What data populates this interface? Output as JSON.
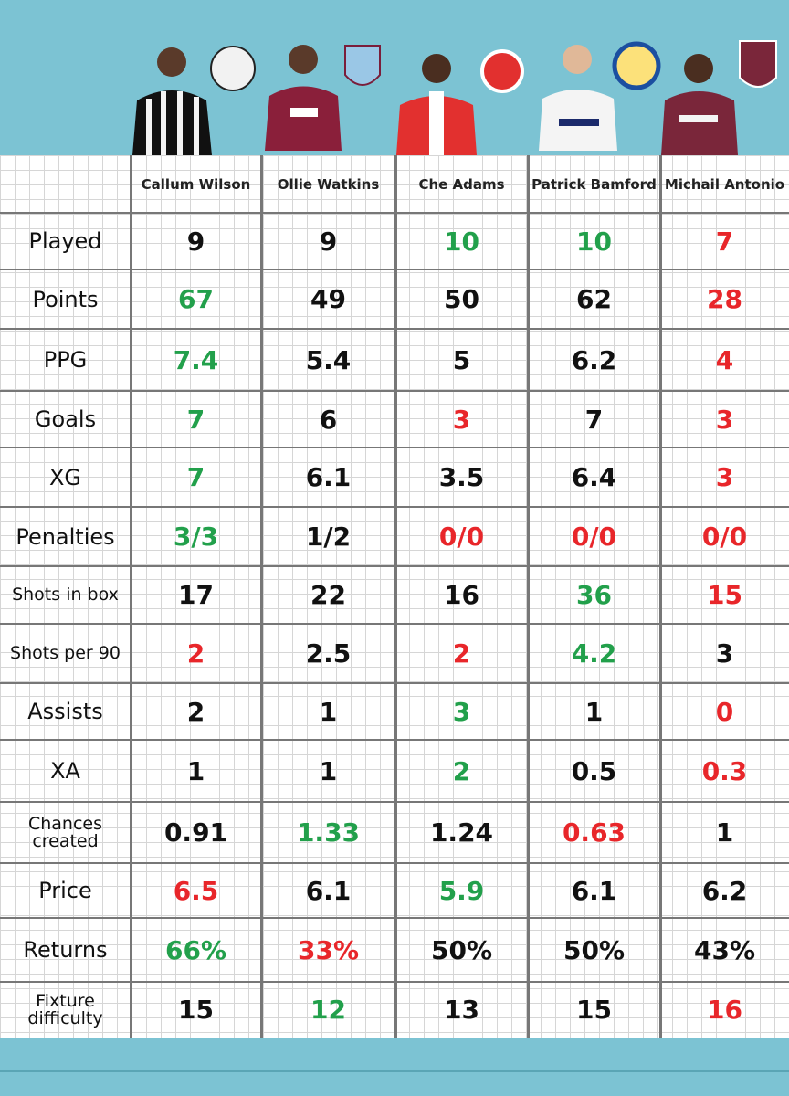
{
  "table": {
    "header": [
      "Callum Wilson",
      "Ollie Watkins",
      "Che Adams",
      "Patrick Bamford",
      "Michail Antonio"
    ],
    "rows": [
      {
        "label": "Played",
        "cells": [
          {
            "text": "9",
            "color": "#111111"
          },
          {
            "text": "9",
            "color": "#111111"
          },
          {
            "text": "10",
            "color": "#22a04b"
          },
          {
            "text": "10",
            "color": "#22a04b"
          },
          {
            "text": "7",
            "color": "#e8262a"
          }
        ]
      },
      {
        "label": "Points",
        "cells": [
          {
            "text": "67",
            "color": "#22a04b"
          },
          {
            "text": "49",
            "color": "#111111"
          },
          {
            "text": "50",
            "color": "#111111"
          },
          {
            "text": "62",
            "color": "#111111"
          },
          {
            "text": "28",
            "color": "#e8262a"
          }
        ]
      },
      {
        "label": "PPG",
        "cells": [
          {
            "text": "7.4",
            "color": "#22a04b"
          },
          {
            "text": "5.4",
            "color": "#111111"
          },
          {
            "text": "5",
            "color": "#111111"
          },
          {
            "text": "6.2",
            "color": "#111111"
          },
          {
            "text": "4",
            "color": "#e8262a"
          }
        ]
      },
      {
        "label": "Goals",
        "cells": [
          {
            "text": "7",
            "color": "#22a04b"
          },
          {
            "text": "6",
            "color": "#111111"
          },
          {
            "text": "3",
            "color": "#e8262a"
          },
          {
            "text": "7",
            "color": "#111111"
          },
          {
            "text": "3",
            "color": "#e8262a"
          }
        ]
      },
      {
        "label": "XG",
        "cells": [
          {
            "text": "7",
            "color": "#22a04b"
          },
          {
            "text": "6.1",
            "color": "#111111"
          },
          {
            "text": "3.5",
            "color": "#111111"
          },
          {
            "text": "6.4",
            "color": "#111111"
          },
          {
            "text": "3",
            "color": "#e8262a"
          }
        ]
      },
      {
        "label": "Penalties",
        "cells": [
          {
            "text": "3/3",
            "color": "#22a04b"
          },
          {
            "text": "1/2",
            "color": "#111111"
          },
          {
            "text": "0/0",
            "color": "#e8262a"
          },
          {
            "text": "0/0",
            "color": "#e8262a"
          },
          {
            "text": "0/0",
            "color": "#e8262a"
          }
        ]
      },
      {
        "label": "Shots in box",
        "cells": [
          {
            "text": "17",
            "color": "#111111"
          },
          {
            "text": "22",
            "color": "#111111"
          },
          {
            "text": "16",
            "color": "#111111"
          },
          {
            "text": "36",
            "color": "#22a04b"
          },
          {
            "text": "15",
            "color": "#e8262a"
          }
        ]
      },
      {
        "label": "Shots per 90",
        "cells": [
          {
            "text": "2",
            "color": "#e8262a"
          },
          {
            "text": "2.5",
            "color": "#111111"
          },
          {
            "text": "2",
            "color": "#e8262a"
          },
          {
            "text": "4.2",
            "color": "#22a04b"
          },
          {
            "text": "3",
            "color": "#111111"
          }
        ]
      },
      {
        "label": "Assists",
        "cells": [
          {
            "text": "2",
            "color": "#111111"
          },
          {
            "text": "1",
            "color": "#111111"
          },
          {
            "text": "3",
            "color": "#22a04b"
          },
          {
            "text": "1",
            "color": "#111111"
          },
          {
            "text": "0",
            "color": "#e8262a"
          }
        ]
      },
      {
        "label": "XA",
        "cells": [
          {
            "text": "1",
            "color": "#111111"
          },
          {
            "text": "1",
            "color": "#111111"
          },
          {
            "text": "2",
            "color": "#22a04b"
          },
          {
            "text": "0.5",
            "color": "#111111"
          },
          {
            "text": "0.3",
            "color": "#e8262a"
          }
        ]
      },
      {
        "label": "Chances created",
        "cells": [
          {
            "text": "0.91",
            "color": "#111111"
          },
          {
            "text": "1.33",
            "color": "#22a04b"
          },
          {
            "text": "1.24",
            "color": "#111111"
          },
          {
            "text": "0.63",
            "color": "#e8262a"
          },
          {
            "text": "1",
            "color": "#111111"
          }
        ]
      },
      {
        "label": "Price",
        "cells": [
          {
            "text": "6.5",
            "color": "#e8262a"
          },
          {
            "text": "6.1",
            "color": "#111111"
          },
          {
            "text": "5.9",
            "color": "#22a04b"
          },
          {
            "text": "6.1",
            "color": "#111111"
          },
          {
            "text": "6.2",
            "color": "#111111"
          }
        ]
      },
      {
        "label": "Returns",
        "cells": [
          {
            "text": "66%",
            "color": "#22a04b"
          },
          {
            "text": "33%",
            "color": "#e8262a"
          },
          {
            "text": "50%",
            "color": "#111111"
          },
          {
            "text": "50%",
            "color": "#111111"
          },
          {
            "text": "43%",
            "color": "#111111"
          }
        ]
      },
      {
        "label": "Fixture difficulty",
        "cells": [
          {
            "text": "15",
            "color": "#111111"
          },
          {
            "text": "12",
            "color": "#22a04b"
          },
          {
            "text": "13",
            "color": "#111111"
          },
          {
            "text": "15",
            "color": "#111111"
          },
          {
            "text": "16",
            "color": "#e8262a"
          }
        ]
      }
    ]
  }
}
